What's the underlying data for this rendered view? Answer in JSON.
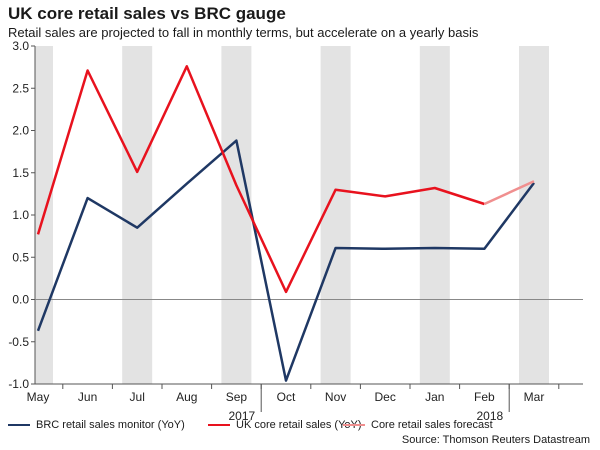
{
  "header": {
    "title": "UK core retail sales vs BRC gauge",
    "subtitle": "Retail sales are projected to fall in monthly terms, but accelerate on a yearly basis"
  },
  "source": "Source: Thomson Reuters Datastream",
  "chart_data": {
    "type": "line",
    "title": "UK core retail sales vs BRC gauge",
    "subtitle": "Retail sales are projected to fall in monthly terms, but accelerate on a yearly basis",
    "categories": [
      "May",
      "Jun",
      "Jul",
      "Aug",
      "Sep",
      "Oct",
      "Nov",
      "Dec",
      "Jan",
      "Feb",
      "Mar"
    ],
    "year_labels": [
      {
        "after": "Sep",
        "label": "2017"
      },
      {
        "after": "Feb",
        "label": "2018"
      }
    ],
    "ylim": [
      -1.0,
      3.0
    ],
    "yticks": [
      -1.0,
      -0.5,
      0.0,
      0.5,
      1.0,
      1.5,
      2.0,
      2.5,
      3.0
    ],
    "ytick_labels": [
      "-1.0",
      "-0.5",
      "0.0",
      "0.5",
      "1.0",
      "1.5",
      "2.0",
      "2.5",
      "3.0"
    ],
    "shaded_bands": true,
    "grid": false,
    "legend_position": "bottom",
    "series": [
      {
        "name": "BRC retail sales monitor (YoY)",
        "color": "#1f3864",
        "values": [
          -0.37,
          1.2,
          0.85,
          1.37,
          1.88,
          -0.96,
          0.61,
          0.6,
          0.61,
          0.6,
          1.38
        ]
      },
      {
        "name": "UK core retail sales (YoY)",
        "color": "#e8121e",
        "values": [
          0.77,
          2.71,
          1.51,
          2.76,
          1.35,
          0.09,
          1.3,
          1.22,
          1.32,
          1.13,
          null
        ]
      },
      {
        "name": "Core retail sales forecast",
        "color": "#f08f8f",
        "values": [
          null,
          null,
          null,
          null,
          null,
          null,
          null,
          null,
          null,
          1.13,
          1.4
        ]
      }
    ]
  }
}
